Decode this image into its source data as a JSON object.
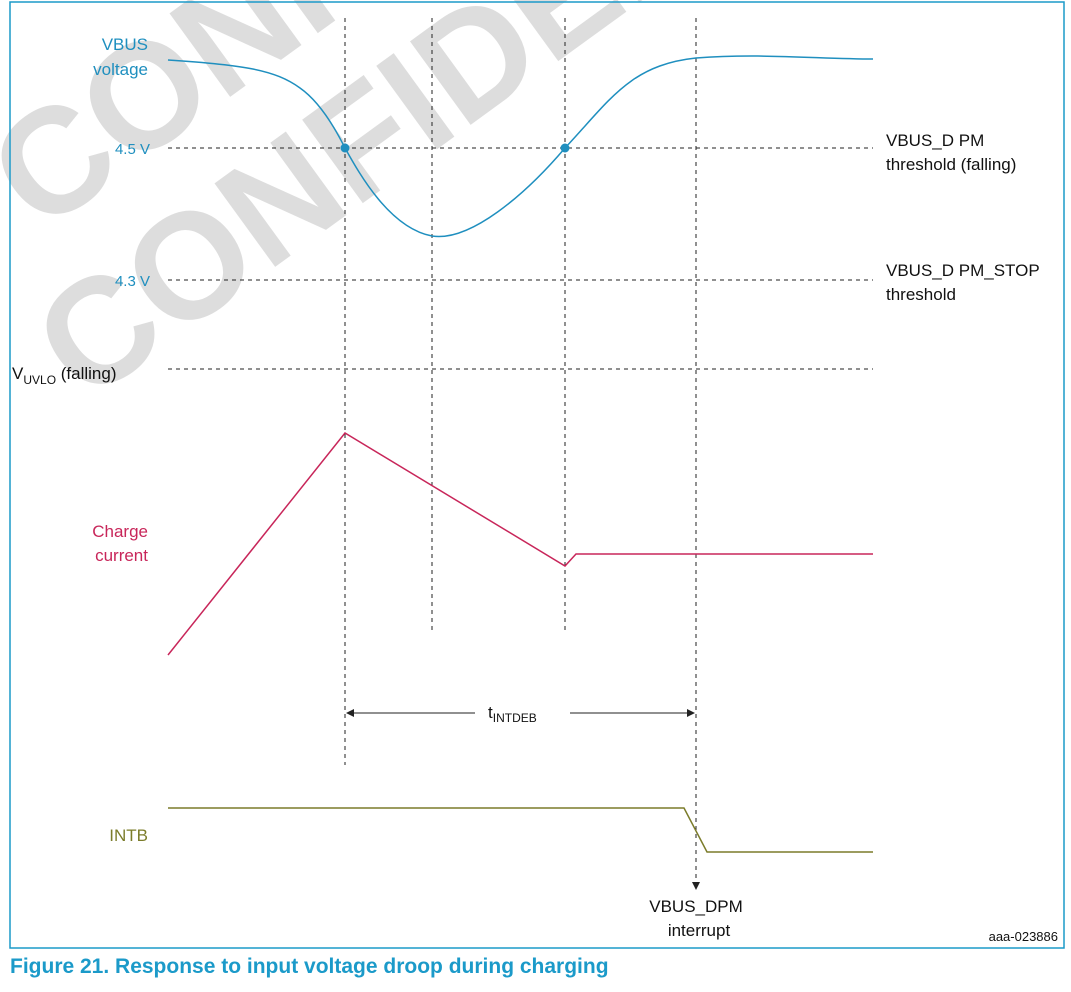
{
  "watermark": {
    "text": "CONFIDENTIAL",
    "color": "#c8c8c8"
  },
  "colors": {
    "frame": "#1b9ac9",
    "vbus": "#1f8fbf",
    "charge": "#c8265a",
    "intb": "#7b7c2a",
    "guide": "#222222",
    "text": "#111111"
  },
  "labels": {
    "vbus_line1": "VBUS",
    "vbus_line2": "voltage",
    "v45": "4.5 V",
    "v43": "4.3 V",
    "uvlo_main": "V",
    "uvlo_sub": "UVLO",
    "uvlo_rest": " (falling)",
    "dpm_line1": "VBUS_D PM",
    "dpm_line2": "threshold (falling)",
    "stop_line1": "VBUS_D PM_STOP",
    "stop_line2": "threshold",
    "charge_line1": "Charge",
    "charge_line2": "current",
    "tdeb_main": "t",
    "tdeb_sub": "INTDEB",
    "intb": "INTB",
    "int_line1": "VBUS_DPM",
    "int_line2": "interrupt",
    "ref": "aaa-023886"
  },
  "caption": "Figure 21.  Response to input voltage droop during charging"
}
